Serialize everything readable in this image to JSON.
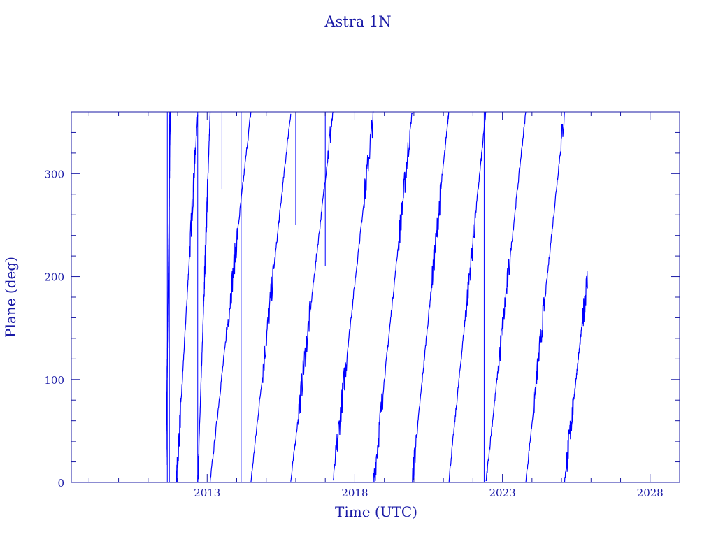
{
  "chart_data": {
    "type": "line",
    "title": "Astra 1N",
    "xlabel": "Time (UTC)",
    "ylabel": "Plane (deg)",
    "xlim": [
      2008.4,
      2029.0
    ],
    "ylim": [
      0,
      360
    ],
    "x_major_ticks": [
      2013,
      2018,
      2023,
      2028
    ],
    "x_tick_labels": [
      "2013",
      "2018",
      "2023",
      "2028"
    ],
    "x_minor_step": 1,
    "y_major_ticks": [
      0,
      100,
      200,
      300
    ],
    "y_tick_labels": [
      "0",
      "100",
      "200",
      "300"
    ],
    "y_minor_step": 20,
    "grid": false,
    "series_color": "#0000ff",
    "axis_color": "#1a1aa6",
    "series": [
      {
        "name": "plane",
        "segments": [
          [
            2011.61,
            20,
            2011.75,
            360
          ],
          [
            2011.96,
            0,
            2012.68,
            360
          ],
          [
            2012.68,
            0,
            2013.1,
            360
          ],
          [
            2013.1,
            0,
            2014.48,
            360
          ],
          [
            2014.48,
            0,
            2015.83,
            360
          ],
          [
            2015.83,
            0,
            2017.26,
            360
          ],
          [
            2017.26,
            0,
            2018.64,
            360
          ],
          [
            2018.64,
            0,
            2019.94,
            360
          ],
          [
            2019.94,
            0,
            2021.18,
            360
          ],
          [
            2021.18,
            0,
            2022.44,
            360
          ],
          [
            2022.44,
            0,
            2023.79,
            360
          ],
          [
            2023.79,
            0,
            2025.1,
            360
          ],
          [
            2025.1,
            0,
            2025.88,
            200
          ]
        ]
      },
      {
        "name": "spikes",
        "bars": [
          [
            2011.65,
            0,
            360
          ],
          [
            2011.72,
            0,
            360
          ],
          [
            2012.68,
            0,
            360
          ],
          [
            2013.5,
            285,
            360
          ],
          [
            2014.15,
            0,
            360
          ],
          [
            2016.0,
            250,
            360
          ],
          [
            2017.0,
            210,
            360
          ],
          [
            2022.38,
            0,
            360
          ]
        ]
      }
    ]
  }
}
